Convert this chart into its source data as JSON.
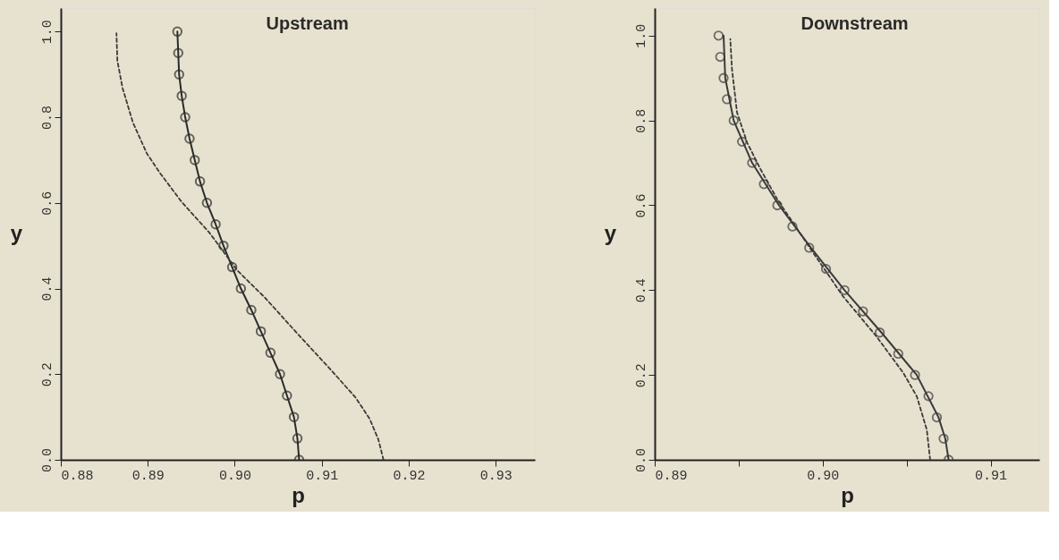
{
  "chart_data": [
    {
      "type": "line",
      "title": "Upstream",
      "xlabel": "p",
      "ylabel": "y",
      "xlim": [
        0.88,
        0.9345
      ],
      "ylim": [
        0,
        1.055
      ],
      "xticks": [
        {
          "value": 0.88,
          "label": "0.88"
        },
        {
          "value": 0.89,
          "label": "0.89"
        },
        {
          "value": 0.9,
          "label": "0.90"
        },
        {
          "value": 0.91,
          "label": "0.91"
        },
        {
          "value": 0.92,
          "label": "0.92"
        },
        {
          "value": 0.93,
          "label": "0.93"
        }
      ],
      "yticks": [
        {
          "value": 0,
          "label": "0.0"
        },
        {
          "value": 0.2,
          "label": "0.2"
        },
        {
          "value": 0.4,
          "label": "0.4"
        },
        {
          "value": 0.6,
          "label": "0.6"
        },
        {
          "value": 0.8,
          "label": "0.8"
        },
        {
          "value": 1,
          "label": "1.0"
        }
      ],
      "series": [
        {
          "type": "line",
          "color": "#2b2b2b",
          "marker": "circle",
          "line_style": "solid",
          "x": [
            0.9074,
            0.9072,
            0.9068,
            0.906,
            0.9052,
            0.9041,
            0.903,
            0.9019,
            0.9007,
            0.8997,
            0.8987,
            0.8978,
            0.8968,
            0.896,
            0.8954,
            0.8948,
            0.8943,
            0.8939,
            0.8936,
            0.8935,
            0.8934
          ],
          "values": [
            0,
            0.05,
            0.1,
            0.15,
            0.2,
            0.25,
            0.3,
            0.35,
            0.4,
            0.45,
            0.5,
            0.55,
            0.6,
            0.65,
            0.7,
            0.75,
            0.8,
            0.85,
            0.9,
            0.95,
            1.0
          ]
        },
        {
          "type": "line",
          "color": "#3a3a3a",
          "marker": "none",
          "line_style": "dashed",
          "x": [
            0.9171,
            0.9165,
            0.9155,
            0.9139,
            0.9111,
            0.9071,
            0.9035,
            0.9003,
            0.8971,
            0.8939,
            0.8915,
            0.8899,
            0.8883,
            0.8871,
            0.8865,
            0.8864
          ],
          "values": [
            0,
            0.048,
            0.096,
            0.145,
            0.209,
            0.297,
            0.378,
            0.442,
            0.53,
            0.602,
            0.667,
            0.715,
            0.787,
            0.868,
            0.932,
            0.996
          ]
        }
      ]
    },
    {
      "type": "line",
      "title": "Downstream",
      "xlabel": "p",
      "ylabel": "y",
      "xlim": [
        0.89,
        0.9129
      ],
      "ylim": [
        0,
        1.065
      ],
      "xticks": [
        {
          "value": 0.89,
          "label": "0.89"
        },
        {
          "value": 0.895,
          "label": null
        },
        {
          "value": 0.9,
          "label": "0.90"
        },
        {
          "value": 0.905,
          "label": null
        },
        {
          "value": 0.91,
          "label": "0.91"
        }
      ],
      "yticks": [
        {
          "value": 0,
          "label": "0.0"
        },
        {
          "value": 0.2,
          "label": "0.2"
        },
        {
          "value": 0.4,
          "label": "0.4"
        },
        {
          "value": 0.6,
          "label": "0.6"
        },
        {
          "value": 0.8,
          "label": "0.8"
        },
        {
          "value": 1,
          "label": "1.0"
        }
      ],
      "series": [
        {
          "type": "scatter",
          "color": "#3a3a3a",
          "marker": "circle",
          "x": [
            0.9075,
            0.9072,
            0.9068,
            0.9063,
            0.9055,
            0.9045,
            0.9034,
            0.9024,
            0.9013,
            0.9002,
            0.8992,
            0.8982,
            0.8973,
            0.8965,
            0.8958,
            0.8952,
            0.8947,
            0.8943,
            0.8941,
            0.8939,
            0.8938
          ],
          "values": [
            0,
            0.05,
            0.1,
            0.15,
            0.2,
            0.25,
            0.3,
            0.35,
            0.4,
            0.45,
            0.5,
            0.55,
            0.6,
            0.65,
            0.7,
            0.75,
            0.8,
            0.85,
            0.9,
            0.95,
            1.0
          ]
        },
        {
          "type": "line",
          "color": "#3a3a3a",
          "marker": "none",
          "line_style": "solid",
          "x": [
            0.9075,
            0.9073,
            0.9069,
            0.9056,
            0.9035,
            0.9013,
            0.8993,
            0.8974,
            0.8958,
            0.8947,
            0.8942,
            0.8941
          ],
          "values": [
            0,
            0.05,
            0.1,
            0.2,
            0.3,
            0.4,
            0.5,
            0.6,
            0.7,
            0.8,
            0.9,
            1.0
          ]
        },
        {
          "type": "line",
          "color": "#3a3a3a",
          "marker": "none",
          "line_style": "dashed",
          "x": [
            0.9064,
            0.9062,
            0.9056,
            0.9048,
            0.9032,
            0.9012,
            0.8993,
            0.8973,
            0.8963,
            0.8955,
            0.8949,
            0.8946,
            0.8945
          ],
          "values": [
            0,
            0.071,
            0.15,
            0.205,
            0.291,
            0.386,
            0.496,
            0.614,
            0.685,
            0.748,
            0.819,
            0.921,
            0.992
          ]
        }
      ]
    }
  ]
}
